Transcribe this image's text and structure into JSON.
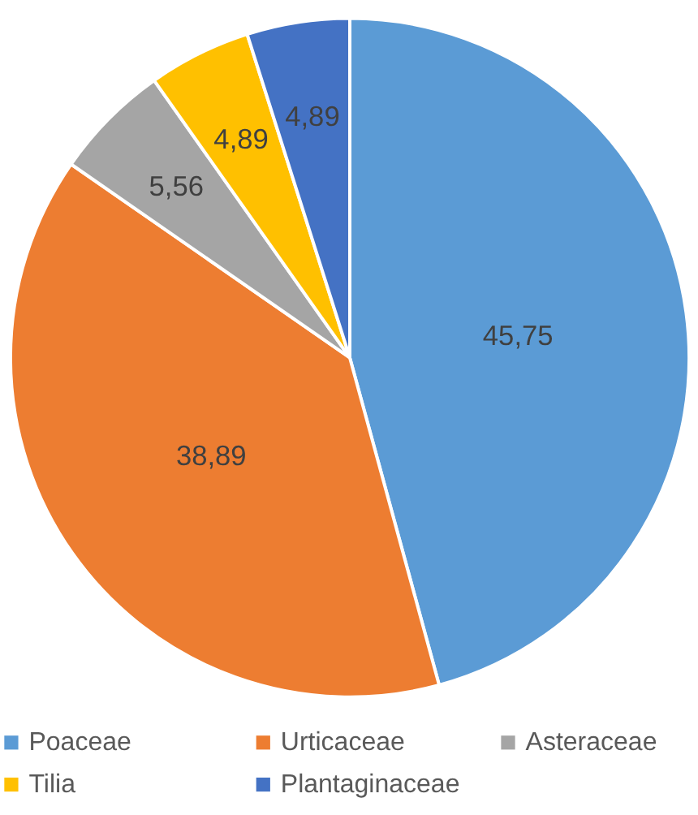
{
  "chart_data": {
    "type": "pie",
    "categories": [
      "Poaceae",
      "Urticaceae",
      "Asteraceae",
      "Tilia",
      "Plantaginaceae"
    ],
    "values": [
      45.75,
      38.89,
      5.56,
      4.89,
      4.89
    ],
    "colors": [
      "#5b9bd5",
      "#ed7d31",
      "#a5a5a5",
      "#ffc000",
      "#4472c4"
    ],
    "value_labels": [
      "45,75",
      "38,89",
      "5,56",
      "4,89",
      "4,89"
    ],
    "legend": "bottom"
  }
}
